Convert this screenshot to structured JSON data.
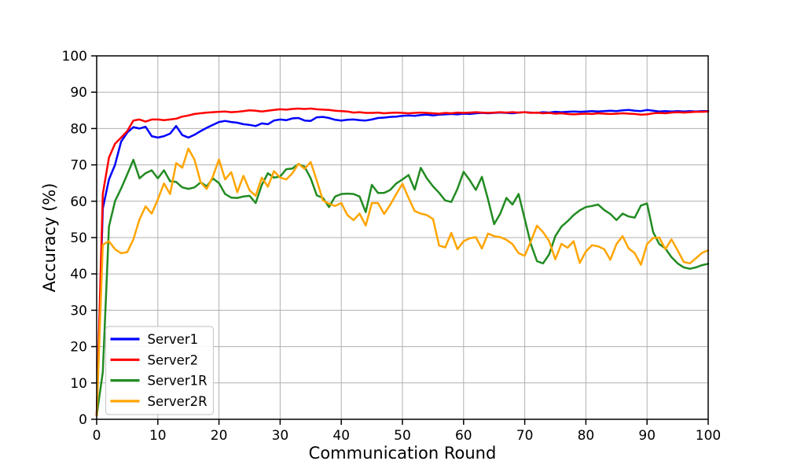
{
  "figure": {
    "background": "#ffffff"
  },
  "chart_data": {
    "type": "line",
    "title": "",
    "xlabel": "Communication Round",
    "ylabel": "Accuracy (%)",
    "xlim": [
      0,
      100
    ],
    "ylim": [
      0,
      100
    ],
    "xticks": [
      0,
      10,
      20,
      30,
      40,
      50,
      60,
      70,
      80,
      90,
      100
    ],
    "yticks": [
      0,
      10,
      20,
      30,
      40,
      50,
      60,
      70,
      80,
      90,
      100
    ],
    "grid": true,
    "grid_color": "#b0b0b0",
    "axis_color": "#000000",
    "legend": {
      "position": "lower-left",
      "border_color": "#cccccc",
      "background": "#ffffff"
    },
    "x": [
      0,
      1,
      2,
      3,
      4,
      5,
      6,
      7,
      8,
      9,
      10,
      11,
      12,
      13,
      14,
      15,
      16,
      17,
      18,
      19,
      20,
      21,
      22,
      23,
      24,
      25,
      26,
      27,
      28,
      29,
      30,
      31,
      32,
      33,
      34,
      35,
      36,
      37,
      38,
      39,
      40,
      41,
      42,
      43,
      44,
      45,
      46,
      47,
      48,
      49,
      50,
      51,
      52,
      53,
      54,
      55,
      56,
      57,
      58,
      59,
      60,
      61,
      62,
      63,
      64,
      65,
      66,
      67,
      68,
      69,
      70,
      71,
      72,
      73,
      74,
      75,
      76,
      77,
      78,
      79,
      80,
      81,
      82,
      83,
      84,
      85,
      86,
      87,
      88,
      89,
      90,
      91,
      92,
      93,
      94,
      95,
      96,
      97,
      98,
      99,
      100
    ],
    "series": [
      {
        "name": "Server1",
        "color": "#0000ff",
        "values": [
          1.0,
          58,
          66,
          70,
          76.4,
          78.9,
          80.4,
          80.0,
          80.5,
          77.9,
          77.5,
          77.9,
          78.6,
          80.7,
          78.2,
          77.5,
          78.3,
          79.3,
          80.2,
          81.0,
          81.8,
          82.1,
          81.8,
          81.6,
          81.2,
          81.0,
          80.7,
          81.4,
          81.2,
          82.2,
          82.5,
          82.3,
          82.8,
          82.9,
          82.2,
          82.1,
          83.1,
          83.2,
          82.9,
          82.4,
          82.2,
          82.4,
          82.5,
          82.3,
          82.2,
          82.5,
          82.9,
          83.0,
          83.2,
          83.3,
          83.5,
          83.6,
          83.5,
          83.7,
          83.8,
          83.6,
          83.8,
          83.9,
          84.0,
          83.9,
          84.1,
          84.0,
          84.2,
          84.3,
          84.2,
          84.3,
          84.4,
          84.3,
          84.2,
          84.4,
          84.5,
          84.4,
          84.3,
          84.5,
          84.4,
          84.6,
          84.5,
          84.6,
          84.7,
          84.6,
          84.7,
          84.8,
          84.7,
          84.8,
          84.9,
          84.8,
          85.0,
          85.1,
          84.9,
          84.8,
          85.1,
          84.9,
          84.7,
          84.8,
          84.7,
          84.8,
          84.7,
          84.8,
          84.7,
          84.8,
          84.8
        ]
      },
      {
        "name": "Server2",
        "color": "#ff0000",
        "values": [
          1.0,
          62,
          72,
          75.8,
          77.5,
          79.3,
          82.2,
          82.5,
          81.9,
          82.5,
          82.5,
          82.3,
          82.5,
          82.7,
          83.3,
          83.6,
          84.0,
          84.2,
          84.4,
          84.5,
          84.6,
          84.7,
          84.5,
          84.6,
          84.8,
          85.0,
          84.9,
          84.7,
          84.9,
          85.1,
          85.3,
          85.2,
          85.4,
          85.5,
          85.4,
          85.5,
          85.3,
          85.2,
          85.1,
          84.9,
          84.8,
          84.7,
          84.4,
          84.5,
          84.3,
          84.3,
          84.4,
          84.2,
          84.3,
          84.4,
          84.3,
          84.2,
          84.3,
          84.4,
          84.3,
          84.2,
          84.1,
          84.3,
          84.2,
          84.4,
          84.3,
          84.4,
          84.5,
          84.4,
          84.3,
          84.4,
          84.5,
          84.4,
          84.5,
          84.4,
          84.5,
          84.3,
          84.4,
          84.2,
          84.3,
          84.1,
          84.2,
          84.0,
          83.9,
          84.0,
          84.1,
          84.0,
          84.2,
          84.1,
          84.0,
          84.1,
          84.2,
          84.1,
          84.0,
          83.8,
          83.9,
          84.2,
          84.3,
          84.2,
          84.4,
          84.5,
          84.4,
          84.5,
          84.6,
          84.6,
          84.7
        ]
      },
      {
        "name": "Server1R",
        "color": "#228b22",
        "values": [
          1.0,
          13,
          53,
          60,
          63.5,
          67.4,
          71.4,
          66.3,
          67.7,
          68.5,
          66.3,
          68.5,
          65.5,
          65.3,
          63.8,
          63.4,
          63.8,
          65.2,
          64.1,
          66.3,
          65.0,
          62.0,
          61.0,
          60.9,
          61.3,
          61.5,
          59.5,
          64.5,
          67.7,
          66.5,
          66.8,
          68.8,
          69.0,
          70.2,
          69.5,
          66.3,
          61.6,
          60.9,
          58.4,
          61.3,
          62.0,
          62.1,
          62.0,
          61.3,
          57.0,
          64.5,
          62.3,
          62.3,
          63.1,
          64.9,
          66.0,
          67.2,
          63.2,
          69.2,
          66.3,
          64.1,
          62.3,
          60.2,
          59.8,
          63.4,
          68.1,
          65.8,
          63.1,
          66.7,
          60.5,
          53.7,
          56.6,
          60.9,
          59.1,
          62.0,
          55.1,
          48.2,
          43.5,
          42.9,
          45.4,
          50.4,
          53.0,
          54.5,
          56.2,
          57.5,
          58.4,
          58.7,
          59.1,
          57.6,
          56.5,
          54.8,
          56.6,
          55.8,
          55.5,
          58.8,
          59.4,
          51.5,
          48.2,
          47.0,
          44.6,
          42.9,
          41.8,
          41.4,
          41.8,
          42.4,
          42.8
        ]
      },
      {
        "name": "Server2R",
        "color": "#ffa500",
        "values": [
          1.0,
          48,
          49,
          46.8,
          45.7,
          46.0,
          49.5,
          55.0,
          58.6,
          56.6,
          60.5,
          64.9,
          62.0,
          70.5,
          69.2,
          74.5,
          71.4,
          65.2,
          63.4,
          66.8,
          71.5,
          66.0,
          68.0,
          62.5,
          67.0,
          63.0,
          61.5,
          66.5,
          64.0,
          68.3,
          66.5,
          66.0,
          67.7,
          70.3,
          68.9,
          70.8,
          65.6,
          60.2,
          59.3,
          58.7,
          59.5,
          56.2,
          54.8,
          56.6,
          53.3,
          59.5,
          59.5,
          56.5,
          59.0,
          62.0,
          64.8,
          60.9,
          57.3,
          56.6,
          56.2,
          55.1,
          47.8,
          47.3,
          51.3,
          46.8,
          49.0,
          49.8,
          50.1,
          47.0,
          51.1,
          50.4,
          50.1,
          49.4,
          48.2,
          45.7,
          45.0,
          49.0,
          53.3,
          51.5,
          49.0,
          44.0,
          48.3,
          47.2,
          49.0,
          43.0,
          46.2,
          47.9,
          47.6,
          46.8,
          43.9,
          48.2,
          50.4,
          47.0,
          45.7,
          42.5,
          48.2,
          49.9,
          50.0,
          46.8,
          49.5,
          46.5,
          43.3,
          42.9,
          44.3,
          45.8,
          46.5
        ]
      }
    ]
  }
}
